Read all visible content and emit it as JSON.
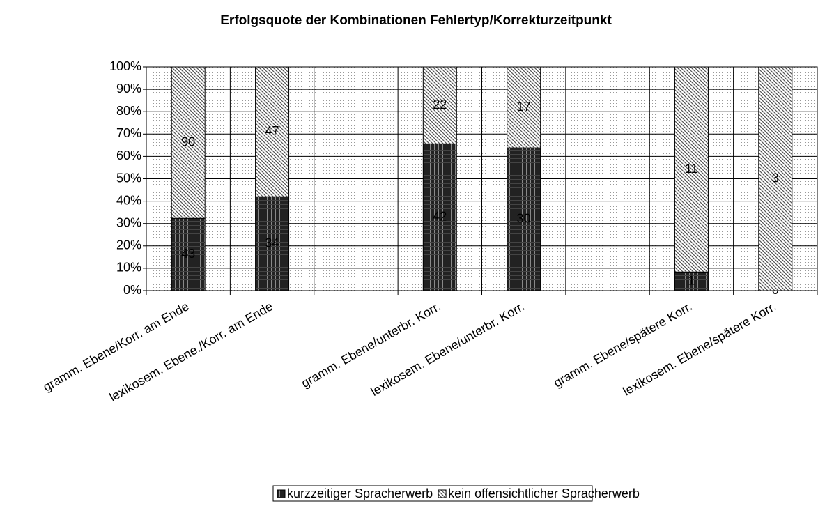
{
  "chart_data": {
    "type": "stacked_percent_bar",
    "title": "Erfolgsquote  der Kombinationen Fehlertyp/Korrekturzeitpunkt",
    "categories": [
      "gramm. Ebene/Korr. am Ende",
      "lexikosem. Ebene./Korr. am Ende",
      null,
      "gramm. Ebene/unterbr. Korr.",
      "lexikosem. Ebene/unterbr. Korr.",
      null,
      "gramm. Ebene/spätere Korr.",
      "lexikosem. Ebene/spätere Korr."
    ],
    "series": [
      {
        "name": "kurzzeitiger Spracherwerb",
        "color": "#222222",
        "values": [
          43,
          34,
          null,
          42,
          30,
          null,
          1,
          0
        ]
      },
      {
        "name": "kein offensichtlicher Spracherwerb",
        "color": "#555555",
        "values": [
          90,
          47,
          null,
          22,
          17,
          null,
          11,
          3
        ]
      }
    ],
    "ylim": [
      0,
      100
    ],
    "yticks": [
      {
        "value": 0,
        "label": "0%"
      },
      {
        "value": 10,
        "label": "10%"
      },
      {
        "value": 20,
        "label": "20%"
      },
      {
        "value": 30,
        "label": "30%"
      },
      {
        "value": 40,
        "label": "40%"
      },
      {
        "value": 50,
        "label": "50%"
      },
      {
        "value": 60,
        "label": "60%"
      },
      {
        "value": 70,
        "label": "70%"
      },
      {
        "value": 80,
        "label": "80%"
      },
      {
        "value": 90,
        "label": "90%"
      },
      {
        "value": 100,
        "label": "100%"
      }
    ],
    "grid": true,
    "legend": "bottom"
  }
}
